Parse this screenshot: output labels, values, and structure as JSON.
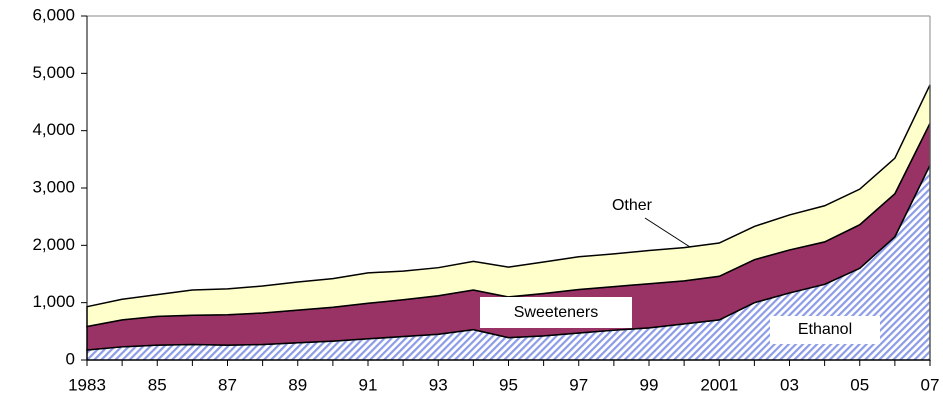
{
  "chart_data": {
    "type": "stacked-area",
    "categories": [
      "1983",
      null,
      "85",
      null,
      "87",
      null,
      "89",
      null,
      "91",
      null,
      "93",
      null,
      "95",
      null,
      "97",
      null,
      "99",
      null,
      "2001",
      null,
      "03",
      null,
      "05",
      null,
      "07"
    ],
    "series": [
      {
        "name": "Ethanol",
        "color": "#8c9ce6",
        "values": [
          175,
          230,
          260,
          270,
          260,
          270,
          300,
          330,
          370,
          410,
          450,
          530,
          390,
          420,
          470,
          520,
          560,
          630,
          700,
          1000,
          1170,
          1320,
          1600,
          2150,
          3400
        ]
      },
      {
        "name": "Sweeteners",
        "color": "#993366",
        "values": [
          410,
          470,
          500,
          510,
          530,
          550,
          570,
          590,
          620,
          640,
          670,
          690,
          710,
          740,
          760,
          760,
          770,
          750,
          760,
          750,
          750,
          740,
          760,
          750,
          730
        ]
      },
      {
        "name": "Other",
        "color": "#ffffcc",
        "values": [
          345,
          360,
          380,
          440,
          450,
          470,
          490,
          500,
          530,
          500,
          490,
          500,
          520,
          550,
          570,
          570,
          580,
          580,
          580,
          580,
          610,
          630,
          620,
          620,
          670
        ]
      }
    ],
    "ylim": [
      0,
      6000
    ],
    "yticks": [
      0,
      {
        "value": 1000,
        "label": "1,000"
      },
      {
        "value": 2000,
        "label": "2,000"
      },
      {
        "value": 3000,
        "label": "3,000"
      },
      {
        "value": 4000,
        "label": "4,000"
      },
      {
        "value": 5000,
        "label": "5,000"
      },
      {
        "value": 6000,
        "label": "6,000"
      }
    ]
  }
}
